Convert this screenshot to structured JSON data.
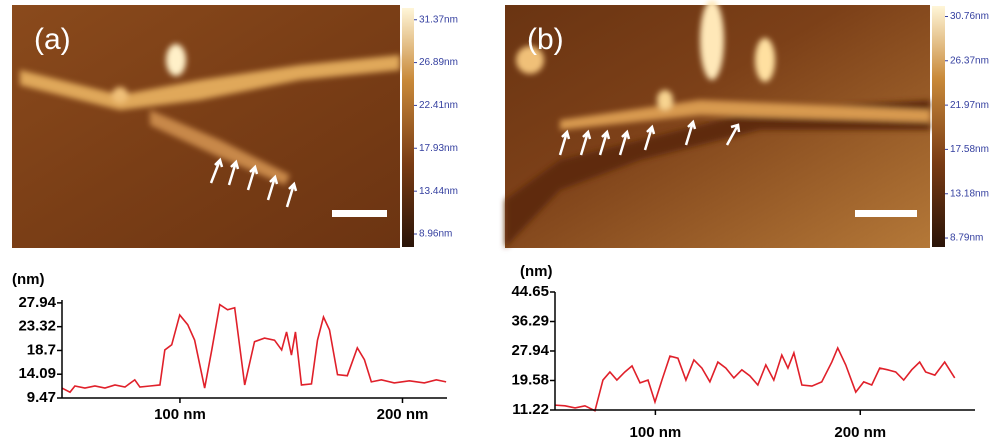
{
  "chart_data": [
    {
      "type": "line",
      "panel_label": "(a)",
      "y_label": "(nm)",
      "colorbar": {
        "lim": [
          7.6,
          32.6
        ],
        "ticks": [
          {
            "value": 31.37,
            "label": "31.37nm"
          },
          {
            "value": 26.89,
            "label": "26.89nm"
          },
          {
            "value": 22.41,
            "label": "22.41nm"
          },
          {
            "value": 17.93,
            "label": "17.93nm"
          },
          {
            "value": 13.44,
            "label": "13.44nm"
          },
          {
            "value": 8.96,
            "label": "8.96nm"
          }
        ]
      },
      "xlim": [
        47,
        220
      ],
      "xticks": [
        {
          "value": 100,
          "label": "100 nm"
        },
        {
          "value": 200,
          "label": "200 nm"
        }
      ],
      "ylim": [
        9.47,
        28.5
      ],
      "yticks": [
        27.94,
        23.32,
        18.7,
        14.09,
        9.47
      ],
      "x": [
        47,
        50.6,
        52.8,
        57.3,
        61.8,
        66.3,
        70.8,
        75.3,
        79.7,
        82.0,
        86.5,
        91.0,
        93.2,
        96.3,
        99.9,
        103.5,
        106.6,
        111.1,
        114.3,
        117.9,
        121.4,
        124.6,
        129.1,
        133.5,
        138.0,
        142.5,
        145.7,
        147.9,
        150.1,
        151.9,
        154.6,
        159.1,
        161.8,
        164.5,
        167.2,
        170.8,
        175.2,
        179.7,
        182.9,
        186.0,
        190.5,
        196.3,
        203.1,
        209.8,
        215.2,
        219.6
      ],
      "series": [
        {
          "color": "#e0202a",
          "values": [
            11.4,
            10.6,
            11.8,
            11.4,
            11.8,
            11.4,
            12.0,
            11.6,
            13.0,
            11.6,
            11.8,
            12.0,
            18.8,
            19.8,
            25.6,
            23.7,
            20.7,
            11.4,
            18.8,
            27.6,
            26.6,
            27.0,
            12.0,
            20.4,
            21.1,
            20.7,
            18.8,
            22.3,
            17.8,
            22.3,
            12.0,
            12.2,
            20.7,
            25.2,
            22.7,
            14.0,
            13.8,
            19.2,
            16.9,
            12.6,
            13.0,
            12.4,
            12.8,
            12.4,
            13.0,
            12.6
          ]
        }
      ]
    },
    {
      "type": "line",
      "panel_label": "(b)",
      "y_label": "(nm)",
      "colorbar": {
        "lim": [
          7.9,
          31.8
        ],
        "ticks": [
          {
            "value": 30.76,
            "label": "30.76nm"
          },
          {
            "value": 26.37,
            "label": "26.37nm"
          },
          {
            "value": 21.97,
            "label": "21.97nm"
          },
          {
            "value": 17.58,
            "label": "17.58nm"
          },
          {
            "value": 13.18,
            "label": "13.18nm"
          },
          {
            "value": 8.79,
            "label": "8.79nm"
          }
        ]
      },
      "xlim": [
        51,
        256
      ],
      "xticks": [
        {
          "value": 100,
          "label": "100 nm"
        },
        {
          "value": 200,
          "label": "200 nm"
        }
      ],
      "ylim": [
        11.22,
        44.65
      ],
      "yticks": [
        44.65,
        36.29,
        27.94,
        19.58,
        11.22
      ],
      "x": [
        51,
        55.9,
        60.8,
        65.6,
        70.5,
        74.4,
        77.8,
        81.2,
        85.1,
        88.6,
        92.5,
        96.4,
        99.8,
        103.2,
        107.1,
        111.0,
        114.9,
        118.8,
        122.7,
        126.6,
        130.5,
        134.4,
        138.3,
        142.2,
        146.1,
        150.0,
        153.9,
        157.8,
        161.7,
        164.7,
        167.6,
        171.5,
        176.4,
        181.2,
        186.1,
        189.0,
        192.9,
        197.8,
        201.7,
        205.6,
        209.5,
        213.4,
        217.3,
        221.2,
        225.1,
        229.0,
        231.9,
        236.4,
        241.2,
        246.1
      ],
      "series": [
        {
          "color": "#e0202a",
          "values": [
            12.6,
            12.4,
            11.8,
            12.4,
            11.0,
            19.7,
            22.0,
            19.7,
            22.0,
            23.7,
            18.9,
            19.7,
            13.5,
            19.7,
            26.5,
            25.9,
            19.7,
            25.4,
            23.1,
            19.2,
            24.8,
            23.1,
            20.3,
            22.6,
            20.9,
            18.3,
            24.0,
            19.7,
            26.8,
            23.1,
            27.4,
            18.3,
            18.0,
            19.2,
            24.8,
            28.8,
            24.0,
            16.3,
            19.2,
            18.3,
            23.1,
            22.6,
            22.0,
            19.7,
            22.6,
            24.8,
            22.0,
            21.1,
            24.8,
            20.3
          ]
        }
      ]
    }
  ]
}
